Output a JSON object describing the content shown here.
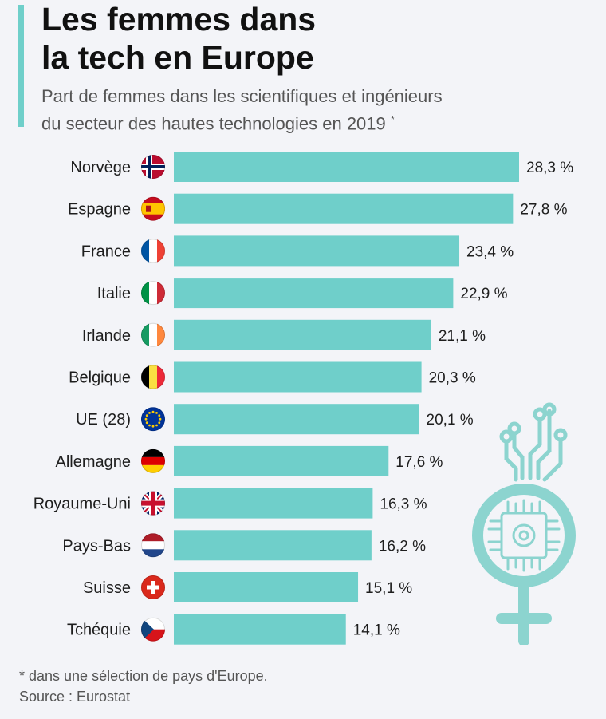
{
  "title_line1": "Les femmes dans",
  "title_line2": "la tech en Europe",
  "subtitle_line1": "Part de femmes dans les scientifiques et ingénieurs",
  "subtitle_line2": "du secteur des hautes technologies en 2019",
  "subtitle_mark": "*",
  "footnote": "* dans une sélection de pays d'Europe.",
  "source": "Source : Eurostat",
  "colors": {
    "bar": "#6fcfca",
    "accent": "#6fcfca",
    "illustration": "#8cd4cf"
  },
  "chart_data": {
    "type": "bar",
    "orientation": "horizontal",
    "categories": [
      "Norvège",
      "Espagne",
      "France",
      "Italie",
      "Irlande",
      "Belgique",
      "UE (28)",
      "Allemagne",
      "Royaume-Uni",
      "Pays-Bas",
      "Suisse",
      "Tchéquie"
    ],
    "values": [
      28.3,
      27.8,
      23.4,
      22.9,
      21.1,
      20.3,
      20.1,
      17.6,
      16.3,
      16.2,
      15.1,
      14.1
    ],
    "value_labels": [
      "28,3 %",
      "27,8 %",
      "23,4 %",
      "22,9 %",
      "21,1 %",
      "20,3 %",
      "20,1 %",
      "17,6 %",
      "16,3 %",
      "16,2 %",
      "15,1 %",
      "14,1 %"
    ],
    "flags": [
      "norway-flag-icon",
      "spain-flag-icon",
      "france-flag-icon",
      "italy-flag-icon",
      "ireland-flag-icon",
      "belgium-flag-icon",
      "eu-flag-icon",
      "germany-flag-icon",
      "uk-flag-icon",
      "netherlands-flag-icon",
      "switzerland-flag-icon",
      "czechia-flag-icon"
    ],
    "xlim": [
      0,
      28.3
    ],
    "grid": false,
    "legend": "none"
  }
}
